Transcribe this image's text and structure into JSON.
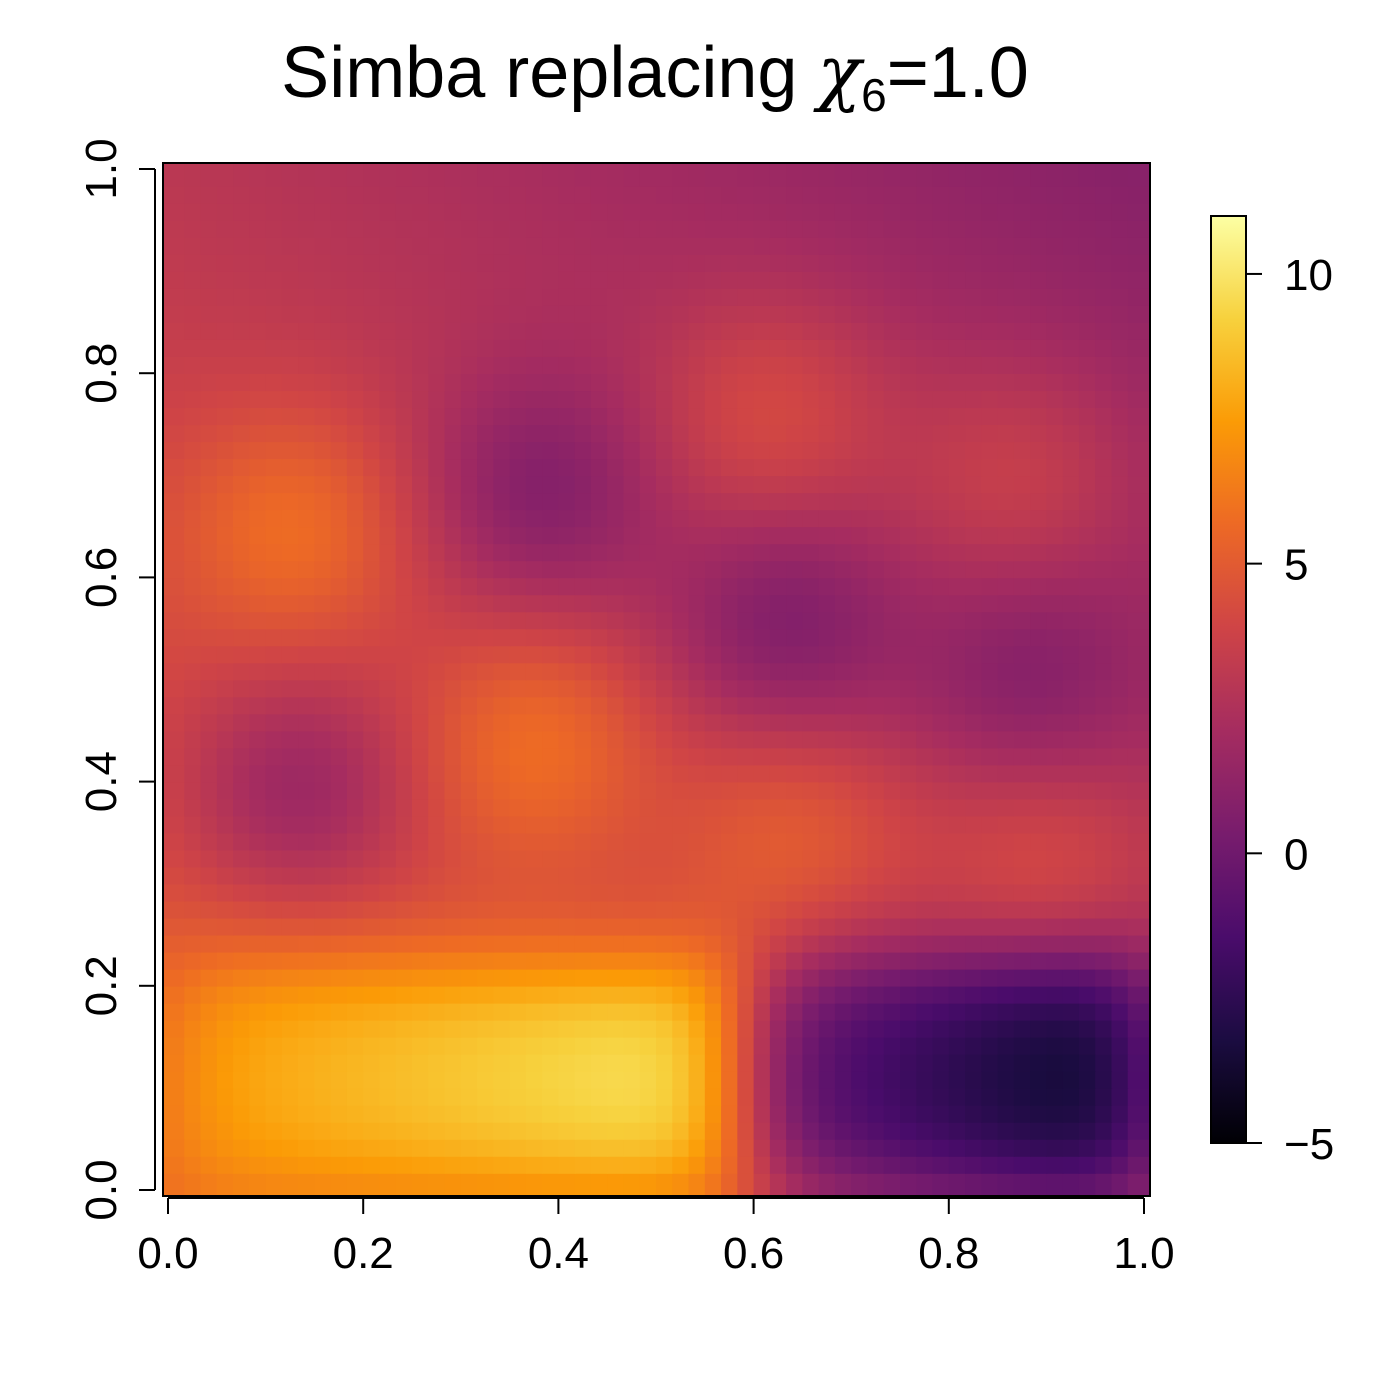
{
  "chart_data": {
    "type": "heatmap",
    "title": {
      "prefix": "Simba replacing ",
      "symbol": "χ",
      "subscript": "6",
      "suffix": "=1.0"
    },
    "xlabel": "",
    "ylabel": "",
    "xlim": [
      0,
      1
    ],
    "ylim": [
      0,
      1
    ],
    "x_ticks": [
      0.0,
      0.2,
      0.4,
      0.6,
      0.8,
      1.0
    ],
    "x_tick_labels": [
      "0.0",
      "0.2",
      "0.4",
      "0.6",
      "0.8",
      "1.0"
    ],
    "y_ticks": [
      0.0,
      0.2,
      0.4,
      0.6,
      0.8,
      1.0
    ],
    "y_tick_labels": [
      "0.0",
      "0.2",
      "0.4",
      "0.6",
      "0.8",
      "1.0"
    ],
    "grid": false,
    "legend": "right",
    "colorscale": {
      "name": "inferno",
      "range": [
        -5,
        11
      ],
      "ticks": [
        -5,
        0,
        5,
        10
      ],
      "tick_labels": [
        "−5",
        "0",
        "5",
        "10"
      ],
      "stops": [
        "#000004",
        "#1b0c41",
        "#4a0c6b",
        "#781c6d",
        "#a52c60",
        "#cf4446",
        "#ed6925",
        "#fb9b06",
        "#f7d13d",
        "#fcffa4"
      ]
    },
    "grid_resolution": [
      60,
      60
    ],
    "field_description": "regular x-y grid over [0,1]x[0,1]; values given by the formula below",
    "field_model": {
      "base": "3 + 2.3*(1-x)*(1-y) - 0.9*x*y - 1.2*x*y^2",
      "bumps": [
        {
          "x": 0.13,
          "y": 0.65,
          "amp": 2.2
        },
        {
          "x": 0.13,
          "y": 0.39,
          "amp": -2.4
        },
        {
          "x": 0.38,
          "y": 0.68,
          "amp": -2.2
        },
        {
          "x": 0.38,
          "y": 0.44,
          "amp": 2.2
        },
        {
          "x": 0.62,
          "y": 0.76,
          "amp": 1.8
        },
        {
          "x": 0.63,
          "y": 0.55,
          "amp": -2.2
        },
        {
          "x": 0.64,
          "y": 0.35,
          "amp": 1.8
        },
        {
          "x": 0.87,
          "y": 0.7,
          "amp": 1.5
        },
        {
          "x": 0.88,
          "y": 0.5,
          "amp": -1.7
        },
        {
          "x": 0.9,
          "y": 0.32,
          "amp": 1.5
        }
      ],
      "bump_sigma": [
        0.085,
        0.085
      ],
      "regions": [
        {
          "x": [
            0.0,
            0.6
          ],
          "y": [
            0.0,
            0.22
          ],
          "value_left": 7.6,
          "value_right": 10.6,
          "edge_sigma": 0.03
        },
        {
          "x": [
            0.6,
            1.0
          ],
          "y": [
            0.0,
            0.22
          ],
          "value_left": -0.5,
          "value_right": -5.0,
          "edge_sigma": 0.03
        }
      ]
    }
  }
}
